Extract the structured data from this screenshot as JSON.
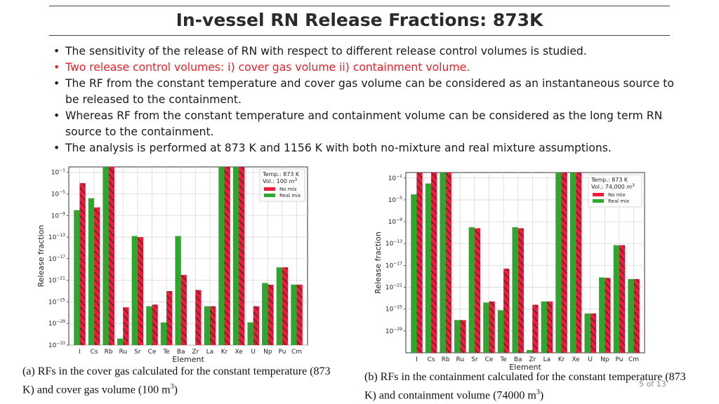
{
  "slide": {
    "title": "In-vessel RN Release Fractions: 873K",
    "page_number": "5 of 13"
  },
  "bullets": [
    {
      "text": "The sensitivity of the release of RN with respect to different release control volumes is studied.",
      "color": "#1a1a1a"
    },
    {
      "text": "Two release control volumes: i) cover gas volume ii) containment volume.",
      "color": "#ee1c24"
    },
    {
      "text": "The RF from the constant temperature and cover gas volume can be considered as an instantaneous source to be released to the containment.",
      "color": "#1a1a1a"
    },
    {
      "text": "Whereas RF from the constant temperature and containment volume can be considered as the long term RN source to the containment.",
      "color": "#1a1a1a"
    },
    {
      "text": "The analysis is performed at 873 K and 1156 K with both no-mixture and real mixture assumptions.",
      "color": "#1a1a1a"
    }
  ],
  "captions": {
    "a": {
      "prefix": "(a) RFs in the cover gas calculated for the constant temperature (873 K) and cover gas volume (100 m",
      "sup": "3",
      "suffix": ")"
    },
    "b": {
      "prefix": "(b) RFs in the containment calculated for the constant temperature (873 K) and containment volume (74000 m",
      "sup": "3",
      "suffix": ")"
    }
  },
  "chart_data": [
    {
      "type": "bar",
      "xlabel": "Element",
      "ylabel": "Release fraction",
      "yscale": "log",
      "ylim_exp": [
        -33,
        0
      ],
      "ytick_labels": [
        "10^-1",
        "10^-5",
        "10^-9",
        "10^-13",
        "10^-17",
        "10^-21",
        "10^-25",
        "10^-29",
        "10^-33"
      ],
      "ytick_exps": [
        -1,
        -5,
        -9,
        -13,
        -17,
        -21,
        -25,
        -29,
        -33
      ],
      "categories": [
        "I",
        "Cs",
        "Rb",
        "Rub",
        "Sr",
        "Ce",
        "Te",
        "Ba",
        "Zr",
        "La",
        "Kr",
        "Xe",
        "U",
        "Np",
        "Pu",
        "Cm"
      ],
      "categories_display": [
        "I",
        "Cs",
        "Rb",
        "Ru",
        "Sr",
        "Ce",
        "Te",
        "Ba",
        "Zr",
        "La",
        "Kr",
        "Xe",
        "U",
        "Np",
        "Pu",
        "Cm"
      ],
      "legend": {
        "title_line1": "Temp.: 873 K",
        "title_line2_prefix": "Vol.: 100 ",
        "title_line2_unit": "m",
        "title_line2_sup": "3",
        "placement": "top-right"
      },
      "series": [
        {
          "name": "No mix",
          "color": "#ee1c3a",
          "hatch": true,
          "exponents": [
            -3,
            -7.5,
            0,
            -26,
            -13,
            -25.5,
            -23,
            -20,
            -22.8,
            -25.8,
            0,
            0,
            -25.8,
            -21.8,
            -18.6,
            -21.8
          ]
        },
        {
          "name": "Real mix",
          "color": "#2ca82c",
          "hatch": false,
          "exponents": [
            -8,
            -5.8,
            0,
            -31.8,
            -12.8,
            -25.8,
            -28.8,
            -12.8,
            -33,
            -25.8,
            0,
            0,
            -28.8,
            -21.5,
            -18.6,
            -21.8
          ]
        }
      ]
    },
    {
      "type": "bar",
      "xlabel": "Element",
      "ylabel": "Release fraction",
      "yscale": "log",
      "ylim_exp": [
        -33,
        0
      ],
      "ytick_labels": [
        "10^-1",
        "10^-5",
        "10^-9",
        "10^-13",
        "10^-17",
        "10^-21",
        "10^-25",
        "10^-29"
      ],
      "ytick_exps": [
        -1,
        -5,
        -9,
        -13,
        -17,
        -21,
        -25,
        -29
      ],
      "categories": [
        "I",
        "Cs",
        "Rb",
        "Ru",
        "Sr",
        "Ce",
        "Te",
        "Ba",
        "Zr",
        "La",
        "Kr",
        "Xe",
        "U",
        "Np",
        "Pu",
        "Cm"
      ],
      "legend": {
        "title_line1": "Temp.: 873 K",
        "title_line2_prefix": "Vol.: 74,000 ",
        "title_line2_unit": "m",
        "title_line2_sup": "3",
        "placement": "top-right"
      },
      "series": [
        {
          "name": "No mix",
          "color": "#ee1c3a",
          "hatch": true,
          "exponents": [
            0,
            0,
            0,
            -27,
            -10.2,
            -23.6,
            -17.6,
            -10.2,
            -24.2,
            -23.6,
            0,
            0,
            -25.8,
            -19.3,
            -13.3,
            -19.5
          ]
        },
        {
          "name": "Real mix",
          "color": "#2ca82c",
          "hatch": false,
          "exponents": [
            -4,
            -2,
            0,
            -27,
            -10,
            -23.8,
            -25.2,
            -10,
            -32.5,
            -23.6,
            0,
            0,
            -25.8,
            -19.2,
            -13.3,
            -19.5
          ]
        }
      ]
    }
  ]
}
